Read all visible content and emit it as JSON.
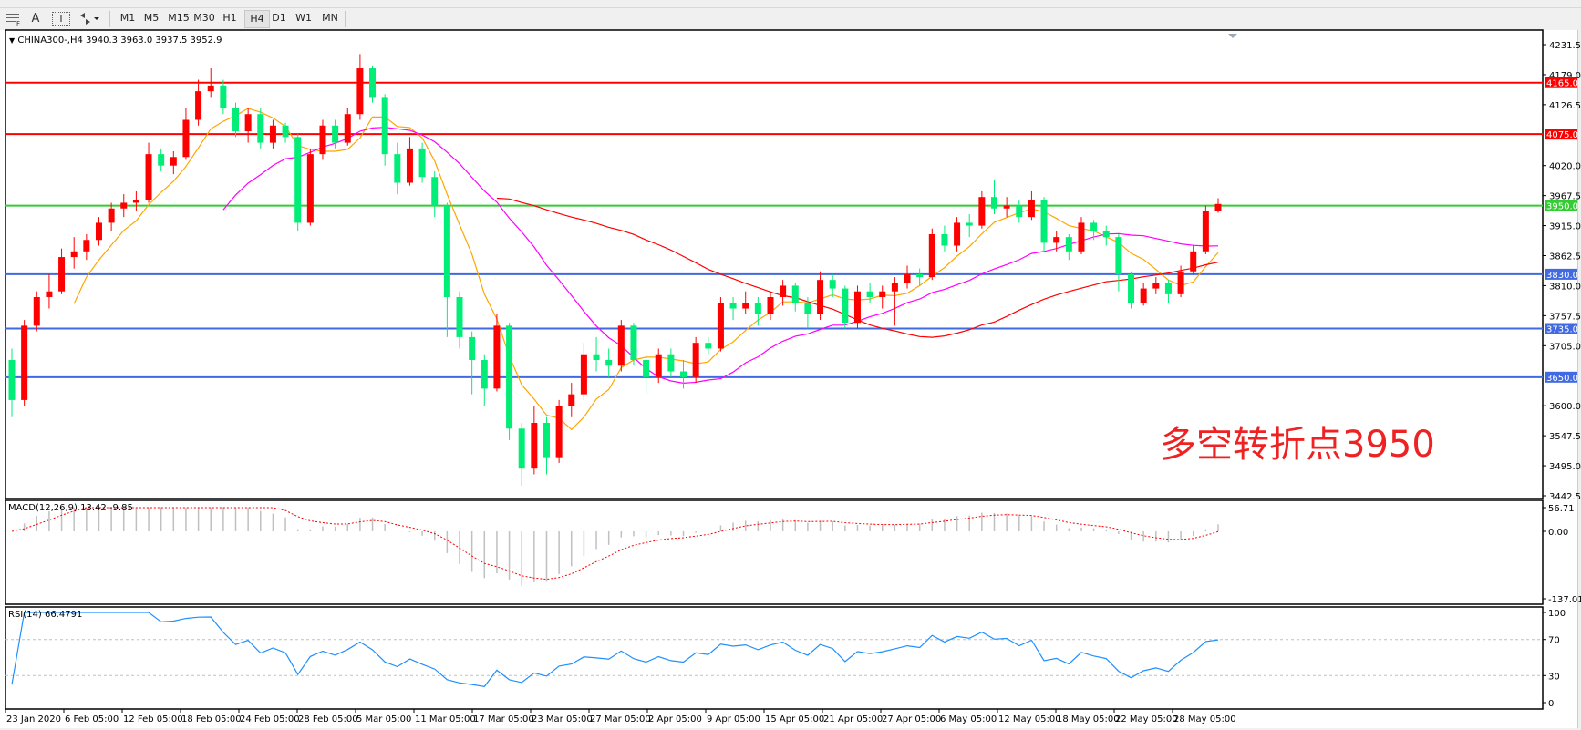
{
  "toolbar": {
    "icons": [
      "grid-f-icon",
      "text-a-icon",
      "text-box-icon",
      "arrows-dropdown-icon"
    ],
    "text_a": "A",
    "text_box": "T",
    "timeframes": [
      "M1",
      "M5",
      "M15",
      "M30",
      "H1",
      "H4",
      "D1",
      "W1",
      "MN"
    ],
    "selected_timeframe": "H4"
  },
  "chart_header": "CHINA300-,H4  3940.3 3963.0 3937.5 3952.9",
  "watermark": "多空转折点3950",
  "colors": {
    "bull": "#ff0000",
    "bear": "#00ee77",
    "ma_fast": "#ffa500",
    "ma_mid": "#ff00ff",
    "ma_slow": "#ff0000",
    "macd_hist": "#c0c0c0",
    "macd_signal": "#ff0000",
    "rsi": "#1e90ff",
    "resistance": "#ff0000",
    "pivot": "#33cc33",
    "support": "#4169e1"
  },
  "chart_data": [
    {
      "type": "candlestick",
      "symbol": "CHINA300-",
      "timeframe": "H4",
      "last_ohlc": {
        "open": 3940.3,
        "high": 3963.0,
        "low": 3937.5,
        "close": 3952.9
      },
      "ylim": [
        3442.5,
        4231.5
      ],
      "y_ticks": [
        "4231.5",
        "4179.0",
        "4126.5",
        "4020.0",
        "3967.5",
        "3915.0",
        "3862.5",
        "3810.0",
        "3757.5",
        "3705.0",
        "3600.0",
        "3547.5",
        "3495.0",
        "3442.5"
      ],
      "x_ticks": [
        "23 Jan 2020",
        "6 Feb 05:00",
        "12 Feb 05:00",
        "18 Feb 05:00",
        "24 Feb 05:00",
        "28 Feb 05:00",
        "5 Mar 05:00",
        "11 Mar 05:00",
        "17 Mar 05:00",
        "23 Mar 05:00",
        "27 Mar 05:00",
        "2 Apr 05:00",
        "9 Apr 05:00",
        "15 Apr 05:00",
        "21 Apr 05:00",
        "27 Apr 05:00",
        "6 May 05:00",
        "12 May 05:00",
        "18 May 05:00",
        "22 May 05:00",
        "28 May 05:00"
      ],
      "horizontal_levels": [
        {
          "value": 4165.0,
          "label": "4165.0",
          "role": "resistance"
        },
        {
          "value": 4075.0,
          "label": "4075.0",
          "role": "resistance"
        },
        {
          "value": 3950.0,
          "label": "3950.0",
          "role": "pivot"
        },
        {
          "value": 3830.0,
          "label": "3830.0",
          "role": "support"
        },
        {
          "value": 3735.0,
          "label": "3735.0",
          "role": "support"
        },
        {
          "value": 3650.0,
          "label": "3650.0",
          "role": "support"
        }
      ],
      "ohlc": [
        [
          3680,
          3700,
          3580,
          3610
        ],
        [
          3610,
          3750,
          3600,
          3740
        ],
        [
          3740,
          3800,
          3730,
          3790
        ],
        [
          3790,
          3830,
          3770,
          3800
        ],
        [
          3800,
          3875,
          3795,
          3860
        ],
        [
          3860,
          3895,
          3840,
          3870
        ],
        [
          3870,
          3900,
          3855,
          3890
        ],
        [
          3890,
          3930,
          3880,
          3920
        ],
        [
          3920,
          3955,
          3905,
          3945
        ],
        [
          3945,
          3970,
          3930,
          3955
        ],
        [
          3955,
          3975,
          3940,
          3960
        ],
        [
          3960,
          4060,
          3955,
          4040
        ],
        [
          4040,
          4050,
          4010,
          4020
        ],
        [
          4020,
          4045,
          4005,
          4035
        ],
        [
          4035,
          4120,
          4030,
          4100
        ],
        [
          4100,
          4170,
          4090,
          4150
        ],
        [
          4150,
          4190,
          4140,
          4160
        ],
        [
          4160,
          4170,
          4110,
          4120
        ],
        [
          4120,
          4130,
          4070,
          4080
        ],
        [
          4080,
          4120,
          4060,
          4110
        ],
        [
          4110,
          4120,
          4050,
          4060
        ],
        [
          4060,
          4100,
          4050,
          4090
        ],
        [
          4090,
          4095,
          4060,
          4070
        ],
        [
          4070,
          4075,
          3905,
          3920
        ],
        [
          3920,
          4050,
          3915,
          4040
        ],
        [
          4040,
          4100,
          4030,
          4090
        ],
        [
          4090,
          4100,
          4050,
          4060
        ],
        [
          4060,
          4120,
          4055,
          4110
        ],
        [
          4110,
          4215,
          4100,
          4190
        ],
        [
          4190,
          4195,
          4130,
          4140
        ],
        [
          4140,
          4145,
          4020,
          4040
        ],
        [
          4040,
          4060,
          3970,
          3990
        ],
        [
          3990,
          4070,
          3985,
          4050
        ],
        [
          4050,
          4060,
          3990,
          4000
        ],
        [
          4000,
          4010,
          3930,
          3950
        ],
        [
          3950,
          3955,
          3720,
          3790
        ],
        [
          3790,
          3800,
          3700,
          3720
        ],
        [
          3720,
          3730,
          3620,
          3680
        ],
        [
          3680,
          3690,
          3600,
          3630
        ],
        [
          3630,
          3760,
          3625,
          3740
        ],
        [
          3740,
          3745,
          3540,
          3560
        ],
        [
          3560,
          3570,
          3460,
          3490
        ],
        [
          3490,
          3600,
          3480,
          3570
        ],
        [
          3570,
          3580,
          3480,
          3510
        ],
        [
          3510,
          3610,
          3500,
          3600
        ],
        [
          3600,
          3640,
          3580,
          3620
        ],
        [
          3620,
          3710,
          3610,
          3690
        ],
        [
          3690,
          3720,
          3660,
          3680
        ],
        [
          3680,
          3700,
          3650,
          3670
        ],
        [
          3670,
          3750,
          3660,
          3740
        ],
        [
          3740,
          3745,
          3670,
          3680
        ],
        [
          3680,
          3690,
          3620,
          3650
        ],
        [
          3650,
          3700,
          3640,
          3690
        ],
        [
          3690,
          3700,
          3650,
          3660
        ],
        [
          3660,
          3680,
          3630,
          3650
        ],
        [
          3650,
          3720,
          3640,
          3710
        ],
        [
          3710,
          3720,
          3690,
          3700
        ],
        [
          3700,
          3790,
          3695,
          3780
        ],
        [
          3780,
          3790,
          3750,
          3770
        ],
        [
          3770,
          3800,
          3760,
          3780
        ],
        [
          3780,
          3790,
          3740,
          3760
        ],
        [
          3760,
          3800,
          3750,
          3790
        ],
        [
          3790,
          3820,
          3775,
          3810
        ],
        [
          3810,
          3815,
          3765,
          3780
        ],
        [
          3780,
          3790,
          3735,
          3760
        ],
        [
          3760,
          3835,
          3750,
          3820
        ],
        [
          3820,
          3830,
          3790,
          3805
        ],
        [
          3805,
          3810,
          3735,
          3745
        ],
        [
          3745,
          3810,
          3735,
          3800
        ],
        [
          3800,
          3815,
          3780,
          3790
        ],
        [
          3790,
          3810,
          3770,
          3800
        ],
        [
          3800,
          3825,
          3740,
          3815
        ],
        [
          3815,
          3845,
          3805,
          3830
        ],
        [
          3830,
          3840,
          3810,
          3825
        ],
        [
          3825,
          3910,
          3820,
          3900
        ],
        [
          3900,
          3915,
          3870,
          3880
        ],
        [
          3880,
          3930,
          3870,
          3920
        ],
        [
          3920,
          3935,
          3895,
          3915
        ],
        [
          3915,
          3975,
          3910,
          3965
        ],
        [
          3965,
          3995,
          3935,
          3945
        ],
        [
          3945,
          3965,
          3930,
          3950
        ],
        [
          3950,
          3960,
          3920,
          3930
        ],
        [
          3930,
          3975,
          3925,
          3960
        ],
        [
          3960,
          3965,
          3870,
          3885
        ],
        [
          3885,
          3905,
          3870,
          3895
        ],
        [
          3895,
          3900,
          3855,
          3870
        ],
        [
          3870,
          3930,
          3865,
          3920
        ],
        [
          3920,
          3925,
          3890,
          3905
        ],
        [
          3905,
          3915,
          3880,
          3895
        ],
        [
          3895,
          3900,
          3800,
          3830
        ],
        [
          3830,
          3835,
          3770,
          3780
        ],
        [
          3780,
          3815,
          3775,
          3805
        ],
        [
          3805,
          3825,
          3795,
          3815
        ],
        [
          3815,
          3820,
          3780,
          3795
        ],
        [
          3795,
          3845,
          3790,
          3835
        ],
        [
          3835,
          3880,
          3830,
          3870
        ],
        [
          3870,
          3950,
          3865,
          3940
        ],
        [
          3940.3,
          3963.0,
          3937.5,
          3952.9
        ]
      ]
    },
    {
      "type": "bar",
      "indicator_label": "MACD(12,26,9) 13.42 -9.85",
      "ylim": [
        -137.01,
        56.71
      ],
      "y_ticks": [
        "56.71",
        "0.00",
        "-137.01"
      ]
    },
    {
      "type": "line",
      "indicator_label": "RSI(14) 66.4791",
      "ylim": [
        0,
        100
      ],
      "levels": [
        70,
        30
      ],
      "y_ticks": [
        "100",
        "70",
        "30",
        "0"
      ]
    }
  ]
}
